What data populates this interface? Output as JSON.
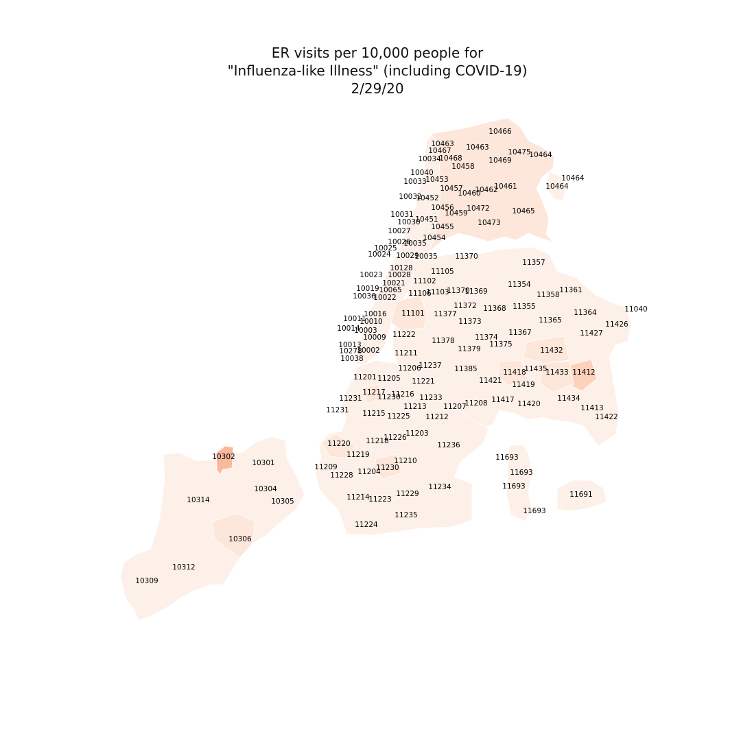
{
  "title_lines": [
    "ER visits per 10,000 people for",
    "\"Influenza-like Illness\" (including COVID-19)",
    "2/29/20"
  ],
  "colors": {
    "base": "#fdf0e8",
    "light": "#fde6da",
    "mid": "#fcd2bd",
    "strong": "#fbb89c",
    "stroke": "#ffffff"
  },
  "zip_labels": [
    "10466",
    "10463",
    "10467",
    "10463",
    "10475",
    "10464",
    "10034",
    "10468",
    "10469",
    "10458",
    "10040",
    "10464",
    "10033",
    "10453",
    "10464",
    "10457",
    "10461",
    "10462",
    "10460",
    "10032",
    "10452",
    "10456",
    "10472",
    "10465",
    "10459",
    "10031",
    "10451",
    "10030",
    "10473",
    "10455",
    "10027",
    "10454",
    "10026",
    "10035",
    "10025",
    "10024",
    "10029",
    "10035",
    "11370",
    "11357",
    "10128",
    "11105",
    "10023",
    "10028",
    "10021",
    "11102",
    "11354",
    "10019",
    "10065",
    "11361",
    "11370",
    "11369",
    "11103",
    "11358",
    "11106",
    "10036",
    "10022",
    "11372",
    "11368",
    "11355",
    "11040",
    "11101",
    "11377",
    "10016",
    "11364",
    "10011",
    "10010",
    "11373",
    "11365",
    "11426",
    "10014",
    "10003",
    "11367",
    "11427",
    "11222",
    "11374",
    "10009",
    "11375",
    "11378",
    "10013",
    "11379",
    "10278",
    "10002",
    "11432",
    "11211",
    "10038",
    "11237",
    "11206",
    "11385",
    "11435",
    "11418",
    "11433",
    "11412",
    "11201",
    "11205",
    "11221",
    "11421",
    "11419",
    "11217",
    "11216",
    "11230",
    "11233",
    "11231",
    "11434",
    "11417",
    "11208",
    "11420",
    "11213",
    "11207",
    "11231",
    "11413",
    "11215",
    "11225",
    "11212",
    "11422",
    "11203",
    "11226",
    "11218",
    "11220",
    "11236",
    "11219",
    "10302",
    "10301",
    "11693",
    "11210",
    "11209",
    "11230",
    "11204",
    "11693",
    "11228",
    "10304",
    "11234",
    "11693",
    "11229",
    "10314",
    "11214",
    "11223",
    "11691",
    "10305",
    "11693",
    "11235",
    "11224",
    "10306",
    "10312",
    "10309"
  ]
}
